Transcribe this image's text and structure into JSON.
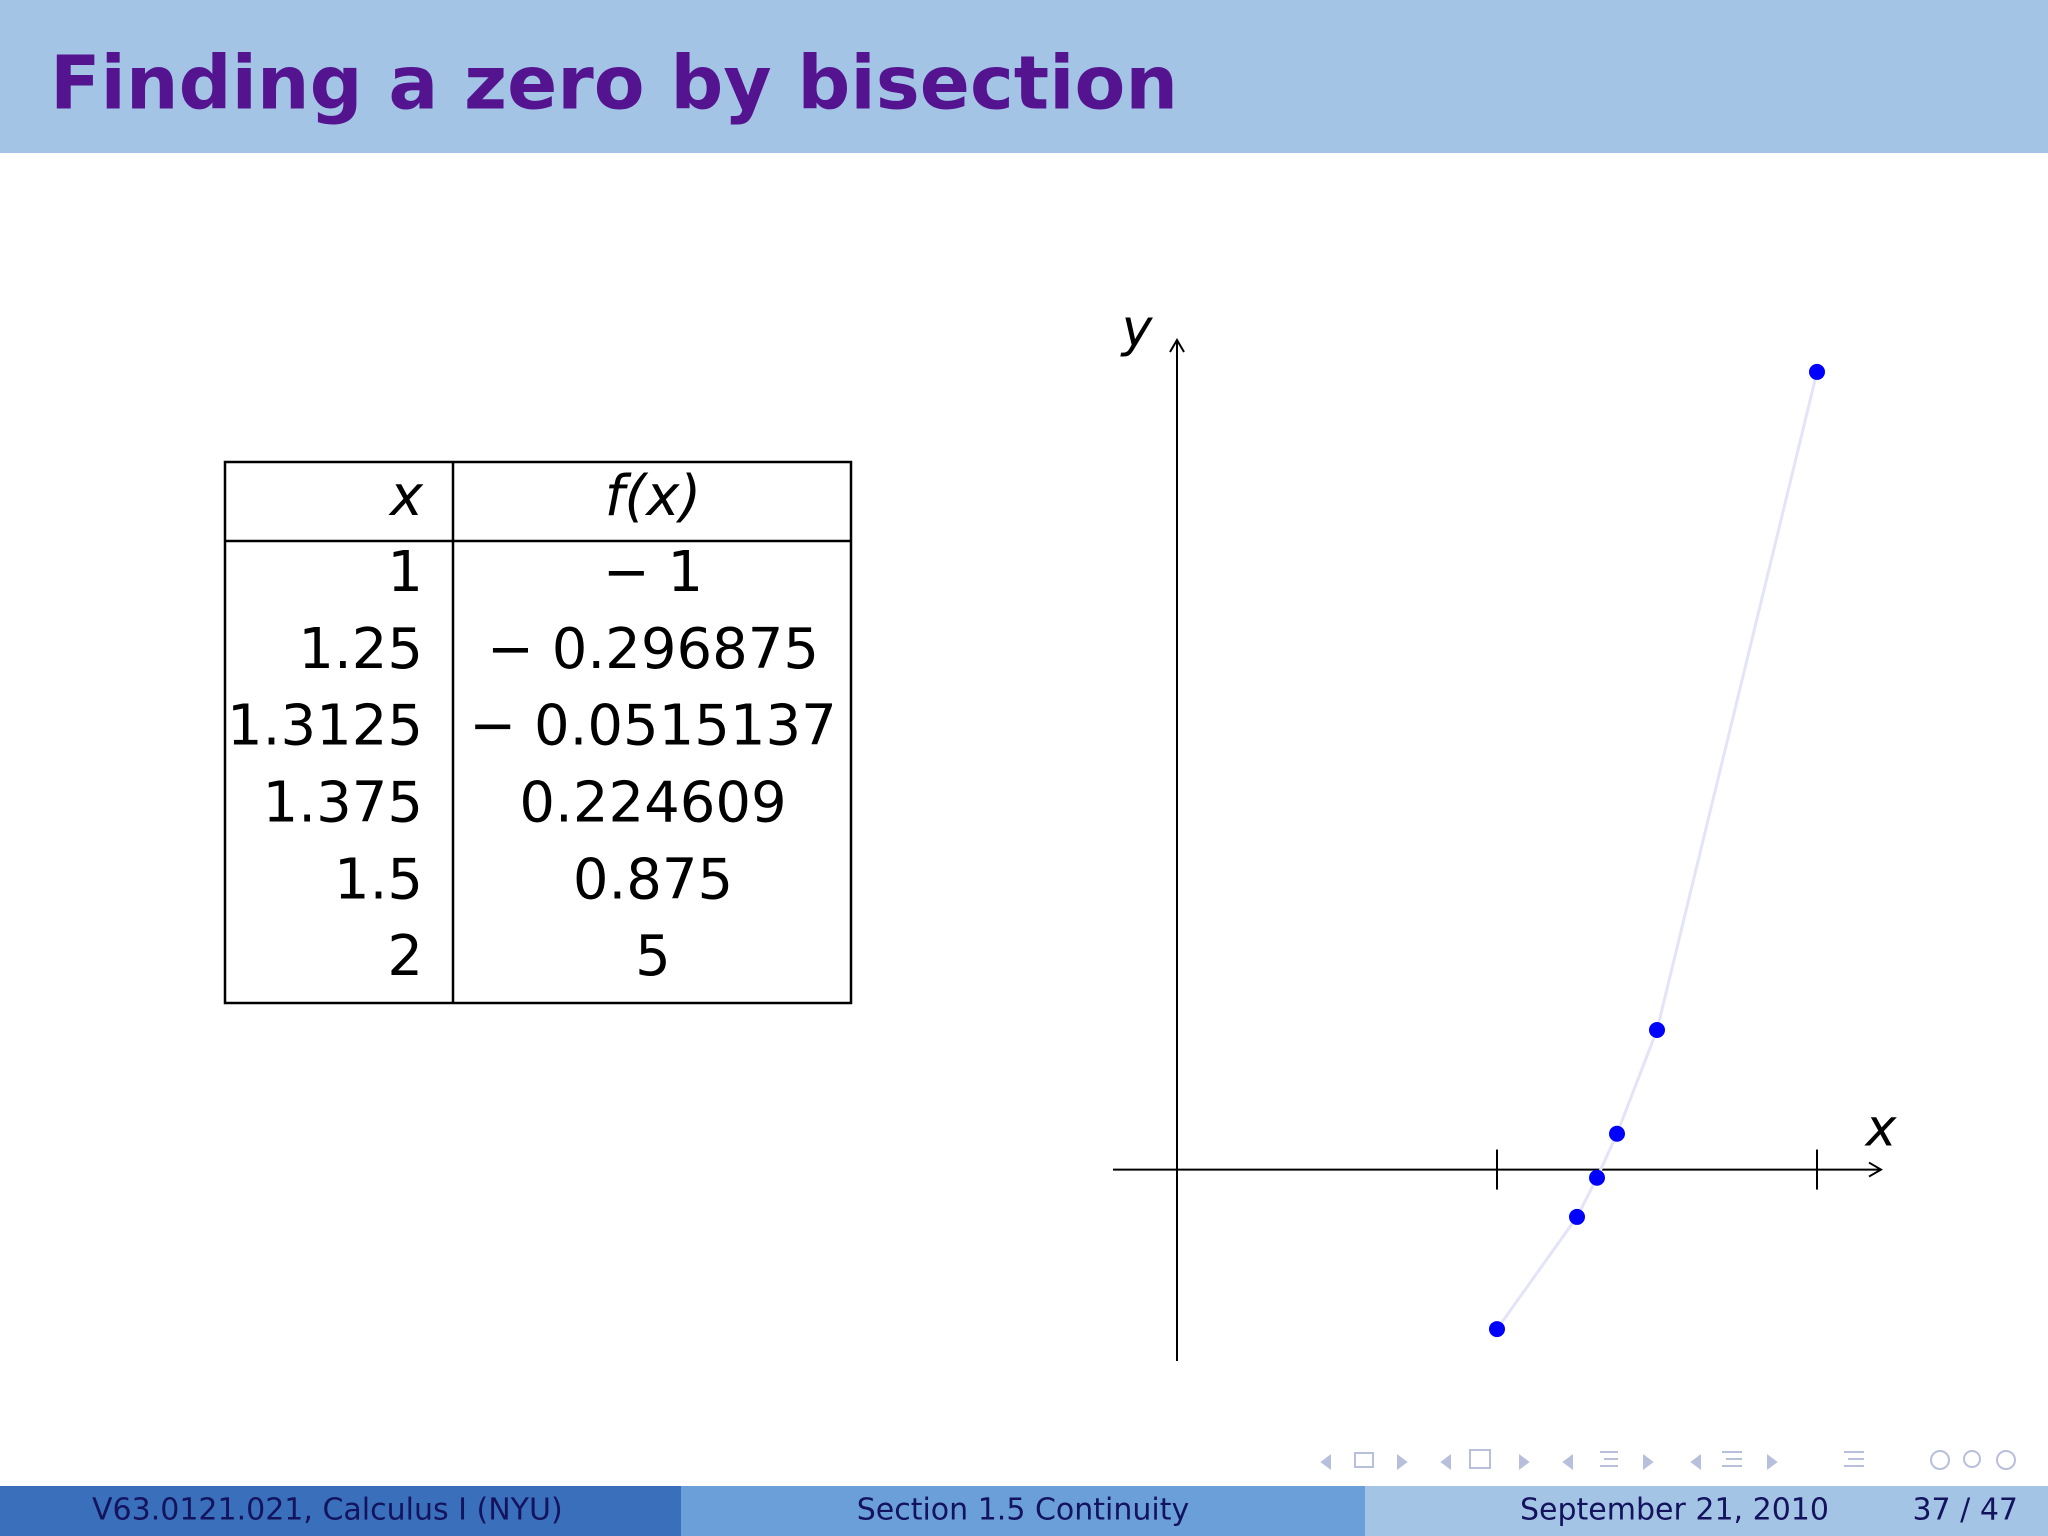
{
  "header": {
    "title": "Finding a zero by bisection"
  },
  "table": {
    "columns": [
      "x",
      "f(x)"
    ],
    "rows": [
      [
        "1",
        "− 1"
      ],
      [
        "1.25",
        "− 0.296875"
      ],
      [
        "1.3125",
        "− 0.0515137"
      ],
      [
        "1.375",
        "0.224609"
      ],
      [
        "1.5",
        "0.875"
      ],
      [
        "2",
        "5"
      ]
    ]
  },
  "chart_data": {
    "type": "line",
    "xlabel": "x",
    "ylabel": "y",
    "x": [
      1,
      1.25,
      1.3125,
      1.375,
      1.5,
      2
    ],
    "series": [
      {
        "color": "#0000ff",
        "line_color": "#e4e4f8",
        "values": [
          -1,
          -0.296875,
          -0.0515137,
          0.224609,
          0.875,
          5
        ]
      }
    ],
    "xlim": [
      -0.2,
      2.2
    ],
    "ylim": [
      -1.2,
      5.2
    ],
    "xticks": [
      1,
      2
    ]
  },
  "footer": {
    "left": "V63.0121.021, Calculus I  (NYU)",
    "center": "Section 1.5  Continuity",
    "date": "September 21, 2010",
    "page": "37 / 47"
  }
}
